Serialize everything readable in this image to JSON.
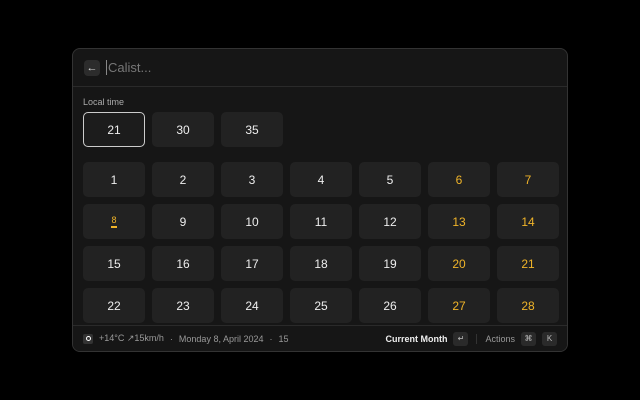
{
  "header": {
    "placeholder": "Calist...",
    "back_icon": "arrow-left-icon"
  },
  "local_time": {
    "label": "Local time",
    "options": [
      "21",
      "30",
      "35"
    ],
    "selected": "21"
  },
  "calendar": {
    "days": [
      "1",
      "2",
      "3",
      "4",
      "5",
      "6",
      "7",
      "8",
      "9",
      "10",
      "11",
      "12",
      "13",
      "14",
      "15",
      "16",
      "17",
      "18",
      "19",
      "20",
      "21",
      "22",
      "23",
      "24",
      "25",
      "26",
      "27",
      "28"
    ],
    "today": "8",
    "weekend_color": "#f0b429"
  },
  "footer": {
    "weather": "+14°C ↗15km/h",
    "dot1": "·",
    "date": "Monday 8, April 2024",
    "dot2": "·",
    "count": "15",
    "primary_action": "Current Month",
    "enter_key": "↵",
    "actions_label": "Actions",
    "cmd_key": "⌘",
    "k_key": "K"
  }
}
